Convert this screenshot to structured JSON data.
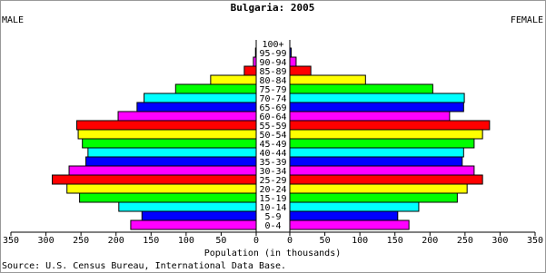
{
  "chart_data": {
    "type": "pyramid",
    "title": "Bulgaria: 2005",
    "x_label": "Population (in thousands)",
    "source": "Source: U.S. Census Bureau, International Data Base.",
    "categories": [
      "0-4",
      "5-9",
      "10-14",
      "15-19",
      "20-24",
      "25-29",
      "30-34",
      "35-39",
      "40-44",
      "45-49",
      "50-54",
      "55-59",
      "60-64",
      "65-69",
      "70-74",
      "75-79",
      "80-84",
      "85-89",
      "90-94",
      "95-99",
      "100+"
    ],
    "colors": [
      "#ff00ff",
      "#0000ff",
      "#00ffff",
      "#00ff00",
      "#ffff00",
      "#ff0000",
      "#ff00ff",
      "#0000ff",
      "#00ffff",
      "#00ff00",
      "#ffff00",
      "#ff0000",
      "#ff00ff",
      "#0000ff",
      "#00ffff",
      "#00ff00",
      "#ffff00",
      "#ff0000",
      "#ff00ff",
      "#0000ff",
      "#00ffff"
    ],
    "series": [
      {
        "name": "MALE",
        "values": [
          179,
          163,
          196,
          252,
          270,
          291,
          267,
          243,
          240,
          248,
          254,
          256,
          197,
          170,
          160,
          115,
          65,
          17,
          4,
          1,
          0
        ]
      },
      {
        "name": "FEMALE",
        "values": [
          170,
          154,
          184,
          239,
          253,
          275,
          263,
          246,
          248,
          263,
          275,
          285,
          228,
          248,
          249,
          204,
          108,
          30,
          9,
          2,
          0
        ]
      }
    ],
    "xlim": [
      0,
      350
    ],
    "xticks": [
      0,
      50,
      100,
      150,
      200,
      250,
      300,
      350
    ]
  }
}
